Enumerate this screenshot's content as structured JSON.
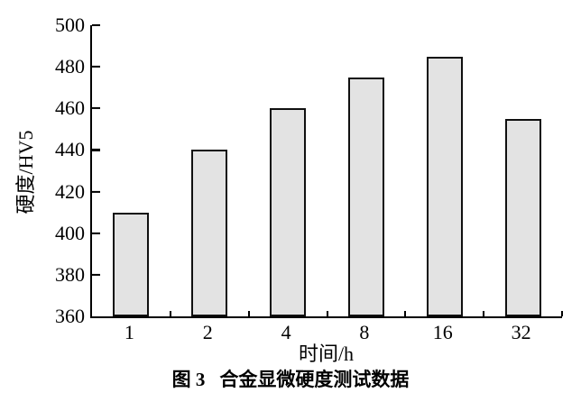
{
  "figure": {
    "caption_label": "图 3",
    "caption_text": "合金显微硬度测试数据"
  },
  "chart_data": {
    "type": "bar",
    "categories": [
      "1",
      "2",
      "4",
      "8",
      "16",
      "32"
    ],
    "values": [
      410,
      440,
      460,
      475,
      485,
      455
    ],
    "title": "",
    "xlabel": "时间/h",
    "ylabel": "硬度/HV5",
    "ylim": [
      360,
      500
    ],
    "yticks": [
      360,
      380,
      400,
      420,
      440,
      460,
      480,
      500
    ],
    "grid": false,
    "legend": false,
    "bar_fill_color": "#e3e3e3",
    "bar_border_color": "#101010",
    "axis_color": "#000000"
  }
}
